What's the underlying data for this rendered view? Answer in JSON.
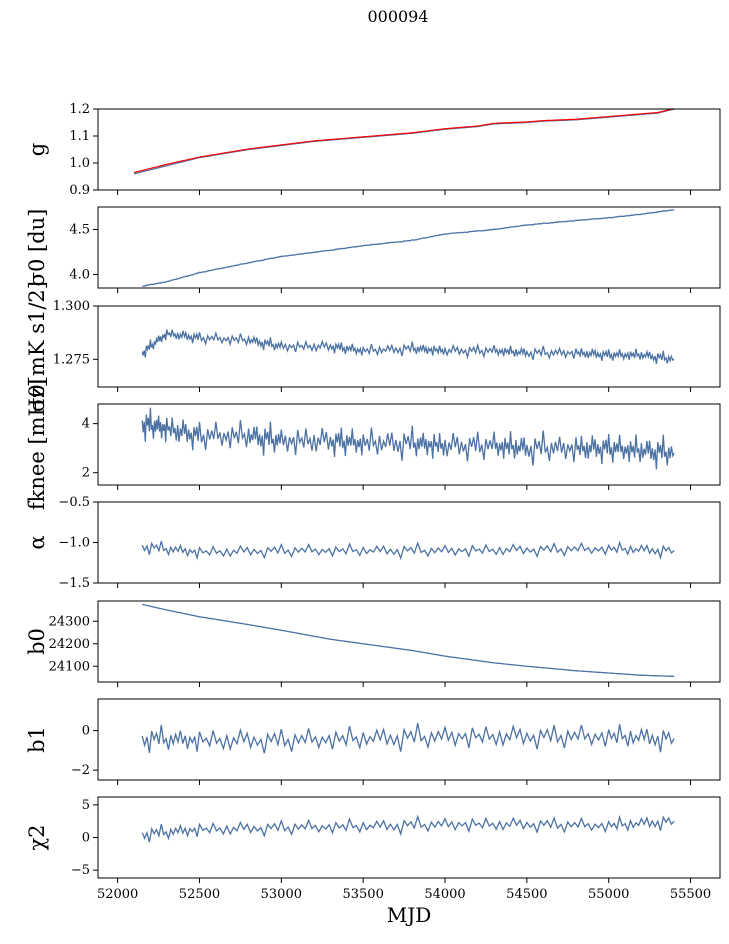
{
  "figure": {
    "title": "000094"
  },
  "chart_data": [
    {
      "id": "g",
      "type": "line",
      "ylabel": "g",
      "ylim": [
        0.9,
        1.2
      ],
      "yticks": [
        0.9,
        1.0,
        1.1,
        1.2
      ],
      "ytick_labels": [
        "0.9",
        "1.0",
        "1.1",
        "1.2"
      ],
      "x": [
        52100,
        52300,
        52500,
        52800,
        53000,
        53200,
        53300,
        53600,
        53800,
        54000,
        54200,
        54300,
        54500,
        54600,
        54800,
        55000,
        55200,
        55300,
        55400
      ],
      "series": [
        {
          "values": [
            0.96,
            0.99,
            1.02,
            1.05,
            1.065,
            1.08,
            1.085,
            1.1,
            1.11,
            1.125,
            1.135,
            1.145,
            1.15,
            1.155,
            1.16,
            1.17,
            1.18,
            1.185,
            1.2
          ],
          "color": "#4c72a4"
        },
        {
          "values": [
            0.965,
            0.995,
            1.022,
            1.052,
            1.067,
            1.082,
            1.087,
            1.102,
            1.112,
            1.127,
            1.137,
            1.147,
            1.152,
            1.157,
            1.162,
            1.172,
            1.182,
            1.187,
            1.202
          ],
          "color": "#ff0000"
        }
      ]
    },
    {
      "id": "sigma0_du",
      "type": "line",
      "ylabel": "σ0 [du]",
      "ylim": [
        3.85,
        4.75
      ],
      "yticks": [
        4.0,
        4.5
      ],
      "ytick_labels": [
        "4.0",
        "4.5"
      ],
      "x": [
        52150,
        52300,
        52500,
        52800,
        53000,
        53300,
        53500,
        53800,
        54000,
        54300,
        54500,
        54800,
        55000,
        55200,
        55400
      ],
      "series": [
        {
          "values": [
            3.87,
            3.92,
            4.02,
            4.13,
            4.2,
            4.27,
            4.32,
            4.38,
            4.45,
            4.5,
            4.55,
            4.6,
            4.63,
            4.67,
            4.72
          ],
          "color": "#4c72a4"
        }
      ]
    },
    {
      "id": "sigma0_mk",
      "type": "line",
      "ylabel": "σ0[mK s1/2]",
      "ylim": [
        1.262,
        1.3
      ],
      "yticks": [
        1.275,
        1.3
      ],
      "ytick_labels": [
        "1.275",
        "1.300"
      ],
      "x": [
        52150,
        52300,
        52500,
        52800,
        53000,
        53300,
        53500,
        53800,
        54000,
        54300,
        54500,
        54800,
        55000,
        55200,
        55400
      ],
      "series": [
        {
          "values": [
            1.278,
            1.287,
            1.285,
            1.284,
            1.281,
            1.281,
            1.279,
            1.28,
            1.279,
            1.279,
            1.278,
            1.278,
            1.277,
            1.277,
            1.275
          ],
          "color": "#4c72a4"
        }
      ]
    },
    {
      "id": "fknee",
      "type": "line",
      "ylabel": "fknee [mHz]",
      "ylim": [
        1.5,
        4.8
      ],
      "yticks": [
        2,
        4
      ],
      "ytick_labels": [
        "2",
        "4"
      ],
      "x": [
        52150,
        52300,
        52500,
        52800,
        53000,
        53300,
        53500,
        53800,
        54000,
        54300,
        54500,
        54800,
        55000,
        55200,
        55400
      ],
      "series": [
        {
          "values": [
            4.0,
            3.8,
            3.5,
            3.5,
            3.3,
            3.3,
            3.2,
            3.2,
            3.1,
            3.1,
            3.0,
            3.0,
            3.0,
            2.9,
            2.8
          ],
          "color": "#4c72a4"
        }
      ]
    },
    {
      "id": "alpha",
      "type": "line",
      "ylabel": "α",
      "ylim": [
        -1.5,
        -0.5
      ],
      "yticks": [
        -1.5,
        -1.0,
        -0.5
      ],
      "ytick_labels": [
        "−1.5",
        "−1.0",
        "−0.5"
      ],
      "x": [
        52150,
        52500,
        53000,
        53500,
        54000,
        54500,
        55000,
        55400
      ],
      "series": [
        {
          "values": [
            -1.05,
            -1.12,
            -1.1,
            -1.1,
            -1.1,
            -1.09,
            -1.08,
            -1.1
          ],
          "color": "#4c72a4"
        }
      ]
    },
    {
      "id": "b0",
      "type": "line",
      "ylabel": "b0",
      "ylim": [
        24030,
        24390
      ],
      "yticks": [
        24100,
        24200,
        24300
      ],
      "ytick_labels": [
        "24100",
        "24200",
        "24300"
      ],
      "x": [
        52150,
        52300,
        52500,
        52800,
        53000,
        53300,
        53500,
        53800,
        54000,
        54300,
        54500,
        54800,
        55000,
        55200,
        55400
      ],
      "series": [
        {
          "values": [
            24375,
            24350,
            24320,
            24285,
            24260,
            24220,
            24200,
            24170,
            24145,
            24115,
            24100,
            24080,
            24070,
            24060,
            24055
          ],
          "color": "#4c72a4"
        }
      ]
    },
    {
      "id": "b1",
      "type": "line",
      "ylabel": "b1",
      "ylim": [
        -2.5,
        1.6
      ],
      "yticks": [
        -2,
        0
      ],
      "ytick_labels": [
        "−2",
        "0"
      ],
      "x": [
        52150,
        52500,
        53000,
        53500,
        54000,
        54500,
        55000,
        55400
      ],
      "series": [
        {
          "values": [
            -0.4,
            -0.5,
            -0.5,
            -0.4,
            -0.3,
            -0.3,
            -0.3,
            -0.4
          ],
          "color": "#4c72a4"
        }
      ]
    },
    {
      "id": "chi2",
      "type": "line",
      "ylabel": "χ2",
      "xlabel": "MJD",
      "ylim": [
        -6.2,
        6.2
      ],
      "yticks": [
        -5,
        0,
        5
      ],
      "ytick_labels": [
        "−5",
        "0",
        "5"
      ],
      "xticks": [
        52000,
        52500,
        53000,
        53500,
        54000,
        54500,
        55000,
        55500
      ],
      "xtick_labels": [
        "52000",
        "52500",
        "53000",
        "53500",
        "54000",
        "54500",
        "55000",
        "55500"
      ],
      "x": [
        52150,
        52500,
        53000,
        53500,
        54000,
        54500,
        55000,
        55400
      ],
      "series": [
        {
          "values": [
            0.5,
            1.2,
            1.5,
            1.7,
            2.0,
            2.0,
            1.8,
            2.5
          ],
          "color": "#4c72a4"
        }
      ]
    }
  ],
  "xlim": [
    51880,
    55680
  ]
}
